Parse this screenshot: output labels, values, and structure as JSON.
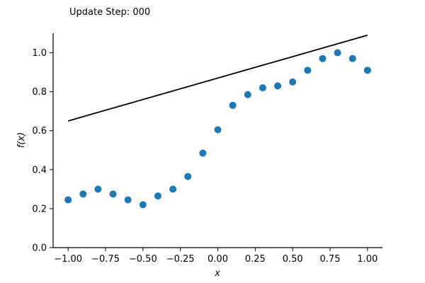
{
  "chart_data": {
    "type": "scatter",
    "title": "Update Step: 000",
    "xlabel": "x",
    "ylabel": "f(x)",
    "xlim": [
      -1.1,
      1.1
    ],
    "ylim": [
      0.0,
      1.1
    ],
    "xticks": [
      -1.0,
      -0.75,
      -0.5,
      -0.25,
      0.0,
      0.25,
      0.5,
      0.75,
      1.0
    ],
    "xtick_labels": [
      "−1.00",
      "−0.75",
      "−0.50",
      "−0.25",
      "0.00",
      "0.25",
      "0.50",
      "0.75",
      "1.00"
    ],
    "yticks": [
      0.0,
      0.2,
      0.4,
      0.6,
      0.8,
      1.0
    ],
    "ytick_labels": [
      "0.0",
      "0.2",
      "0.4",
      "0.6",
      "0.8",
      "1.0"
    ],
    "grid": false,
    "point_color": "#1f77b4",
    "line_color": "#000000",
    "series": [
      {
        "type": "scatter",
        "x": [
          -1.0,
          -0.9,
          -0.8,
          -0.7,
          -0.6,
          -0.5,
          -0.4,
          -0.3,
          -0.2,
          -0.1,
          0.0,
          0.1,
          0.2,
          0.3,
          0.4,
          0.5,
          0.6,
          0.7,
          0.8,
          0.9,
          1.0
        ],
        "y": [
          0.245,
          0.275,
          0.3,
          0.275,
          0.245,
          0.22,
          0.265,
          0.3,
          0.365,
          0.485,
          0.605,
          0.73,
          0.785,
          0.82,
          0.83,
          0.85,
          0.91,
          0.97,
          1.0,
          0.97,
          0.91
        ]
      },
      {
        "type": "line",
        "x": [
          -1.0,
          1.0
        ],
        "y": [
          0.65,
          1.09
        ]
      }
    ]
  }
}
